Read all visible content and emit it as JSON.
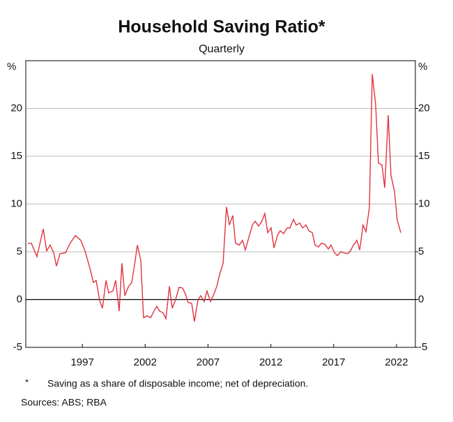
{
  "chart_data": {
    "type": "line",
    "title": "Household Saving Ratio*",
    "subtitle": "Quarterly",
    "y_unit": "%",
    "y2_unit": "%",
    "xlim": [
      1993,
      2024
    ],
    "xticks": [
      {
        "value": 1997.5,
        "label": "1997"
      },
      {
        "value": 2002.5,
        "label": "2002"
      },
      {
        "value": 2007.5,
        "label": "2007"
      },
      {
        "value": 2012.5,
        "label": "2012"
      },
      {
        "value": 2017.5,
        "label": "2017"
      },
      {
        "value": 2022.5,
        "label": "2022"
      }
    ],
    "ylim": [
      -5,
      25
    ],
    "yticks": [
      -5,
      0,
      5,
      10,
      15,
      20
    ],
    "y2lim": [
      -5,
      25
    ],
    "y2ticks": [
      -5,
      0,
      5,
      10,
      15,
      20
    ],
    "grid": true,
    "x": [
      1993.17,
      1993.44,
      1993.89,
      1994.39,
      1994.66,
      1994.94,
      1995.22,
      1995.44,
      1995.72,
      1996.16,
      1996.49,
      1996.94,
      1997.38,
      1997.71,
      1998.1,
      1998.38,
      1998.6,
      1998.88,
      1999.1,
      1999.38,
      1999.6,
      1999.93,
      2000.15,
      2000.43,
      2000.65,
      2000.88,
      2001.15,
      2001.43,
      2001.65,
      2001.88,
      2002.15,
      2002.37,
      2002.65,
      2002.93,
      2003.2,
      2003.43,
      2003.65,
      2003.93,
      2004.15,
      2004.43,
      2004.65,
      2004.92,
      2005.2,
      2005.48,
      2005.7,
      2005.92,
      2006.2,
      2006.42,
      2006.7,
      2006.92,
      2007.2,
      2007.42,
      2007.7,
      2007.92,
      2008.2,
      2008.42,
      2008.7,
      2008.97,
      2009.2,
      2009.47,
      2009.69,
      2009.97,
      2010.25,
      2010.47,
      2010.75,
      2011.03,
      2011.25,
      2011.52,
      2011.75,
      2012.02,
      2012.25,
      2012.52,
      2012.75,
      2013.02,
      2013.24,
      2013.52,
      2013.8,
      2014.02,
      2014.3,
      2014.52,
      2014.8,
      2015.02,
      2015.3,
      2015.52,
      2015.8,
      2016.02,
      2016.29,
      2016.52,
      2016.79,
      2017.07,
      2017.29,
      2017.57,
      2017.79,
      2018.07,
      2018.29,
      2018.57,
      2018.79,
      2019.07,
      2019.35,
      2019.57,
      2019.84,
      2020.07,
      2020.34,
      2020.57,
      2020.84,
      2021.06,
      2021.34,
      2021.56,
      2021.84,
      2022.06,
      2022.34,
      2022.56,
      2022.84
    ],
    "series": [
      {
        "name": "Household Saving Ratio",
        "color": "#e0333f",
        "values": [
          5.9,
          5.9,
          4.5,
          7.4,
          5.1,
          5.7,
          4.9,
          3.5,
          4.8,
          4.9,
          5.8,
          6.7,
          6.2,
          5.1,
          3.3,
          1.8,
          2.0,
          -0.1,
          -0.9,
          2.0,
          0.7,
          0.9,
          2.0,
          -1.2,
          3.8,
          0.4,
          1.3,
          1.8,
          3.6,
          5.7,
          4.1,
          -1.9,
          -1.7,
          -1.9,
          -1.2,
          -0.7,
          -1.2,
          -1.4,
          -2.0,
          1.4,
          -0.9,
          0,
          1.3,
          1.2,
          0.6,
          -0.3,
          -0.4,
          -2.3,
          0,
          0.4,
          -0.2,
          0.9,
          -0.2,
          0.4,
          1.4,
          2.6,
          3.8,
          9.7,
          7.8,
          8.8,
          5.9,
          5.7,
          6.2,
          5.2,
          6.5,
          7.8,
          8.2,
          7.7,
          8.1,
          9.0,
          7.0,
          7.5,
          5.4,
          6.7,
          7.2,
          6.9,
          7.5,
          7.5,
          8.4,
          7.8,
          8.0,
          7.5,
          7.8,
          7.2,
          7.0,
          5.7,
          5.5,
          5.9,
          5.8,
          5.3,
          5.7,
          4.9,
          4.6,
          5.0,
          4.9,
          4.8,
          5.0,
          5.7,
          6.2,
          5.2,
          7.8,
          7.1,
          9.6,
          23.6,
          20.4,
          14.3,
          14.1,
          11.7,
          19.3,
          13.0,
          11.3,
          8.3,
          7.0
        ]
      }
    ],
    "notes": [
      "*",
      "Saving as a share of disposable income; net of depreciation."
    ],
    "sources": "Sources: ABS; RBA"
  }
}
